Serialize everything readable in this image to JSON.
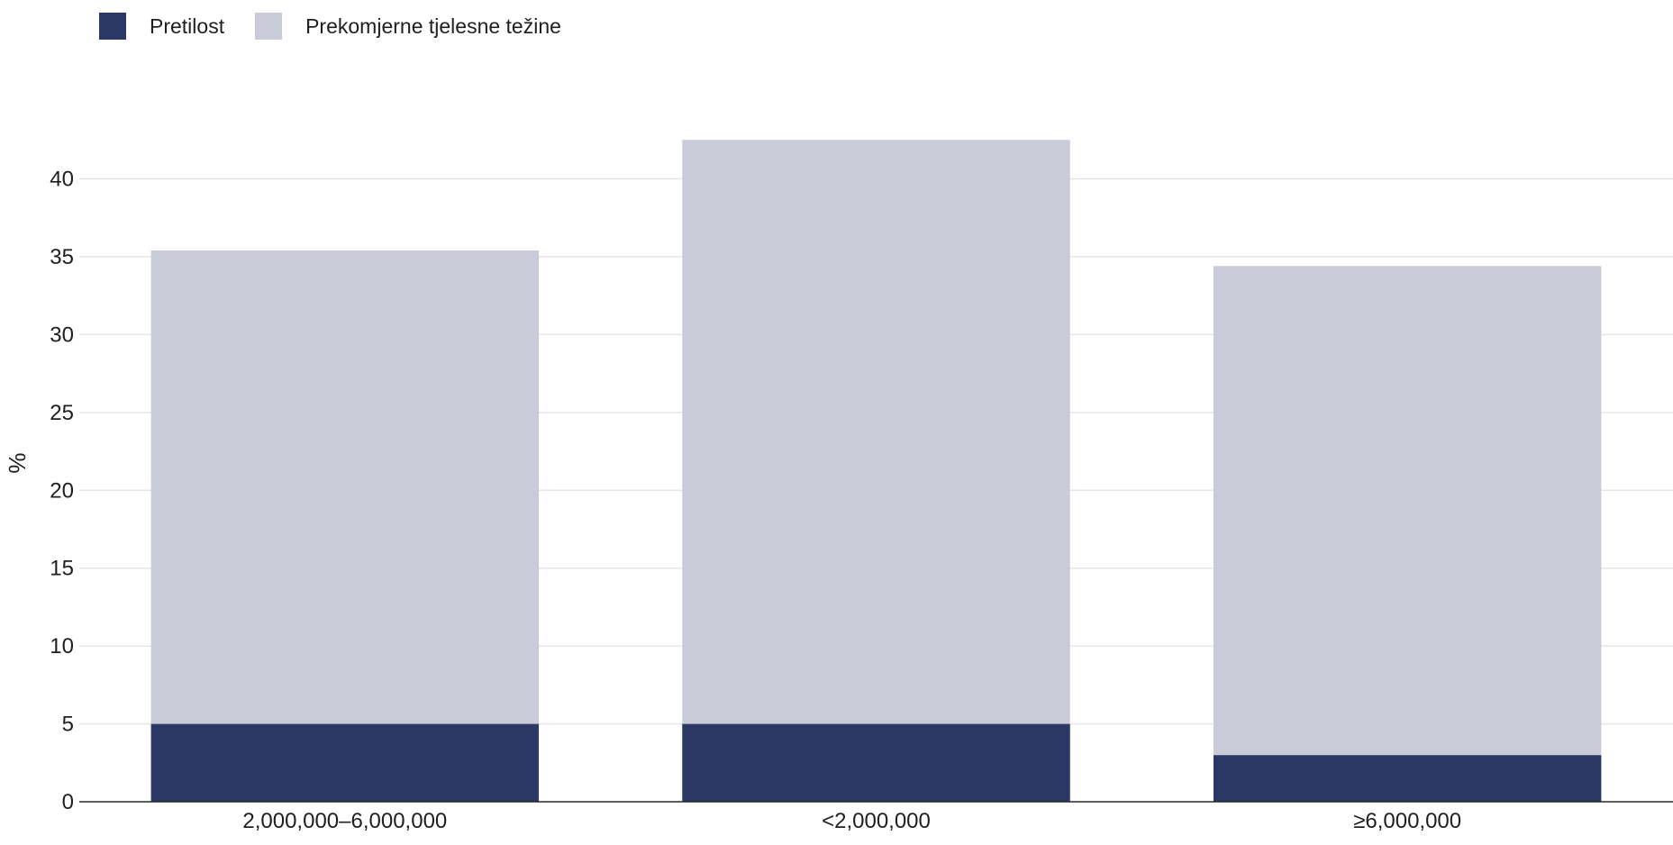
{
  "legend": {
    "items": [
      {
        "label": "Pretilost",
        "color": "#2b3866"
      },
      {
        "label": "Prekomjerne tjelesne težine",
        "color": "#c9ccd8"
      }
    ]
  },
  "chart_data": {
    "type": "bar",
    "stacked": true,
    "title": "",
    "xlabel": "",
    "ylabel": "%",
    "categories": [
      "2,000,000–6,000,000",
      "<2,000,000",
      "≥6,000,000"
    ],
    "series": [
      {
        "name": "Pretilost",
        "color": "#2b3866",
        "values": [
          5.0,
          5.0,
          3.0
        ]
      },
      {
        "name": "Prekomjerne tjelesne težine",
        "color": "#c9ccd8",
        "values": [
          30.4,
          37.5,
          31.4
        ]
      }
    ],
    "ylim": [
      0,
      43.5
    ],
    "yticks": [
      0,
      5,
      10,
      15,
      20,
      25,
      30,
      35,
      40
    ],
    "grid": true,
    "legend_position": "top-left"
  }
}
